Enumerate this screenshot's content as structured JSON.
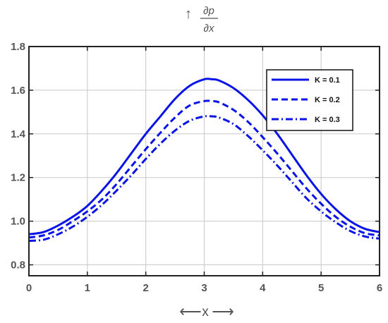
{
  "chart_data": {
    "type": "line",
    "title": "",
    "ylabel": {
      "numerator": "∂p",
      "denominator": "∂x",
      "arrow": "↑"
    },
    "xlabel": {
      "left_arrow": "⟵",
      "text": "x",
      "right_arrow": "⟶"
    },
    "xlim": [
      0,
      6
    ],
    "ylim": [
      0.75,
      1.8
    ],
    "xticks": [
      "0",
      "1",
      "2",
      "3",
      "4",
      "5",
      "6"
    ],
    "yticks": [
      "0.8",
      "1.0",
      "1.2",
      "1.4",
      "1.6",
      "1.8"
    ],
    "grid": true,
    "legend_position": "top-right",
    "color": "#0a14e6",
    "x": [
      0,
      0.25,
      0.5,
      0.75,
      1,
      1.25,
      1.5,
      1.75,
      2,
      2.25,
      2.5,
      2.75,
      3,
      3.14,
      3.25,
      3.5,
      3.75,
      4,
      4.25,
      4.5,
      4.75,
      5,
      5.25,
      5.5,
      5.75,
      6
    ],
    "series": [
      {
        "name": "K = 0.1",
        "style": "solid",
        "values": [
          0.94,
          0.95,
          0.98,
          1.02,
          1.07,
          1.14,
          1.22,
          1.31,
          1.4,
          1.48,
          1.56,
          1.62,
          1.65,
          1.65,
          1.645,
          1.61,
          1.555,
          1.485,
          1.4,
          1.305,
          1.21,
          1.125,
          1.055,
          1.0,
          0.965,
          0.95
        ]
      },
      {
        "name": "K = 0.2",
        "style": "dashed",
        "values": [
          0.925,
          0.935,
          0.96,
          1.0,
          1.045,
          1.1,
          1.17,
          1.25,
          1.33,
          1.405,
          1.475,
          1.53,
          1.55,
          1.55,
          1.545,
          1.51,
          1.455,
          1.385,
          1.31,
          1.23,
          1.15,
          1.08,
          1.02,
          0.975,
          0.945,
          0.935
        ]
      },
      {
        "name": "K = 0.3",
        "style": "dashdot",
        "values": [
          0.91,
          0.915,
          0.94,
          0.975,
          1.02,
          1.075,
          1.14,
          1.21,
          1.285,
          1.355,
          1.415,
          1.46,
          1.48,
          1.48,
          1.475,
          1.445,
          1.39,
          1.325,
          1.255,
          1.18,
          1.105,
          1.045,
          0.995,
          0.955,
          0.93,
          0.92
        ]
      }
    ]
  }
}
